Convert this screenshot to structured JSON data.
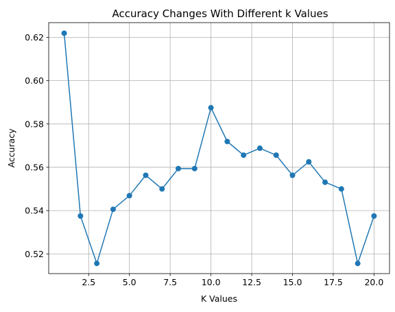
{
  "chart_data": {
    "type": "line",
    "title": "Accuracy Changes With Different k Values",
    "xlabel": "K Values",
    "ylabel": "Accuracy",
    "xlim": [
      0.05,
      20.95
    ],
    "ylim": [
      0.5109,
      0.6268
    ],
    "xticks": [
      2.5,
      5.0,
      7.5,
      10.0,
      12.5,
      15.0,
      17.5,
      20.0
    ],
    "xtick_labels": [
      "2.5",
      "5.0",
      "7.5",
      "10.0",
      "12.5",
      "15.0",
      "17.5",
      "20.0"
    ],
    "yticks": [
      0.52,
      0.54,
      0.56,
      0.58,
      0.6,
      0.62
    ],
    "ytick_labels": [
      "0.52",
      "0.54",
      "0.56",
      "0.58",
      "0.60",
      "0.62"
    ],
    "grid": true,
    "marker": "circle",
    "color": "#1f77b4",
    "series": [
      {
        "x": [
          1,
          2,
          3,
          4,
          5,
          6,
          7,
          8,
          9,
          10,
          11,
          12,
          13,
          14,
          15,
          16,
          17,
          18,
          19,
          20
        ],
        "values": [
          0.6219,
          0.5375,
          0.5156,
          0.5406,
          0.5469,
          0.5563,
          0.55,
          0.5594,
          0.5594,
          0.5875,
          0.5719,
          0.5656,
          0.5688,
          0.5656,
          0.5563,
          0.5625,
          0.5531,
          0.55,
          0.5156,
          0.5375
        ]
      }
    ]
  }
}
